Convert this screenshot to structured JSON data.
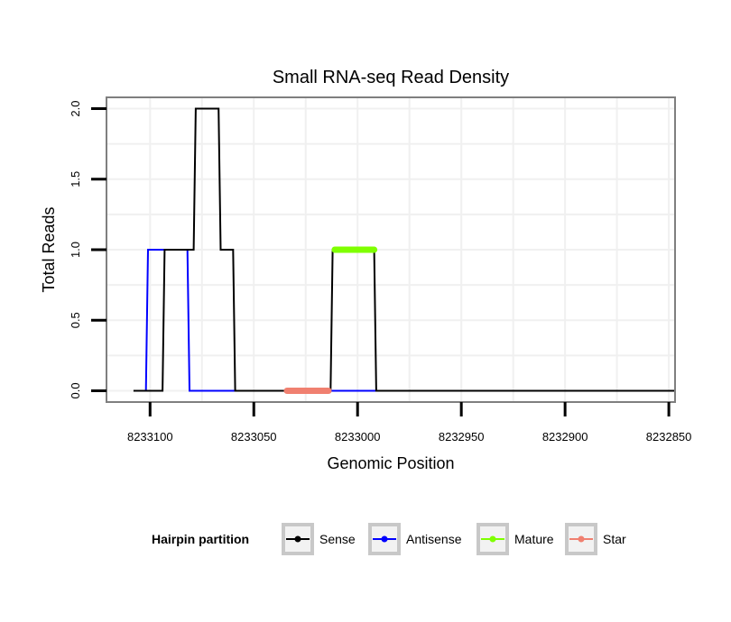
{
  "chart_data": {
    "type": "line",
    "title": "Small RNA-seq Read Density",
    "xlabel": "Genomic Position",
    "ylabel": "Total Reads",
    "x_reversed": true,
    "xlim": [
      8233121,
      8232847
    ],
    "ylim": [
      -0.08,
      2.08
    ],
    "x_ticks": [
      8233100,
      8233050,
      8233000,
      8232950,
      8232900,
      8232850
    ],
    "x_tick_labels": [
      "8233100",
      "8233050",
      "8233000",
      "8232950",
      "8232900",
      "8232850"
    ],
    "y_ticks": [
      0.0,
      0.5,
      1.0,
      1.5,
      2.0
    ],
    "y_tick_labels": [
      "0.0",
      "0.5",
      "1.0",
      "1.5",
      "2.0"
    ],
    "grid": true,
    "legend": {
      "title": "Hairpin partition",
      "position": "bottom",
      "entries": [
        "Sense",
        "Antisense",
        "Mature",
        "Star"
      ]
    },
    "series": [
      {
        "name": "Antisense",
        "color": "#0000ff",
        "x": [
          8233102,
          8233101,
          8233082,
          8233081,
          8232992,
          8232991,
          8232847
        ],
        "y": [
          0,
          1,
          1,
          0,
          0,
          0,
          0
        ]
      },
      {
        "name": "Sense",
        "color": "#000000",
        "x": [
          8233108,
          8233094,
          8233093,
          8233079,
          8233078,
          8233067,
          8233066,
          8233060,
          8233059,
          8233013,
          8233012,
          8232992,
          8232991,
          8232847
        ],
        "y": [
          0,
          0,
          1,
          1,
          2,
          2,
          1,
          1,
          0,
          0,
          1,
          1,
          0,
          0
        ]
      },
      {
        "name": "Star",
        "color": "#f08070",
        "x": [
          8233034,
          8233014
        ],
        "y": [
          0,
          0
        ]
      },
      {
        "name": "Mature",
        "color": "#7fff00",
        "x": [
          8233011,
          8232992
        ],
        "y": [
          1,
          1
        ]
      }
    ]
  }
}
